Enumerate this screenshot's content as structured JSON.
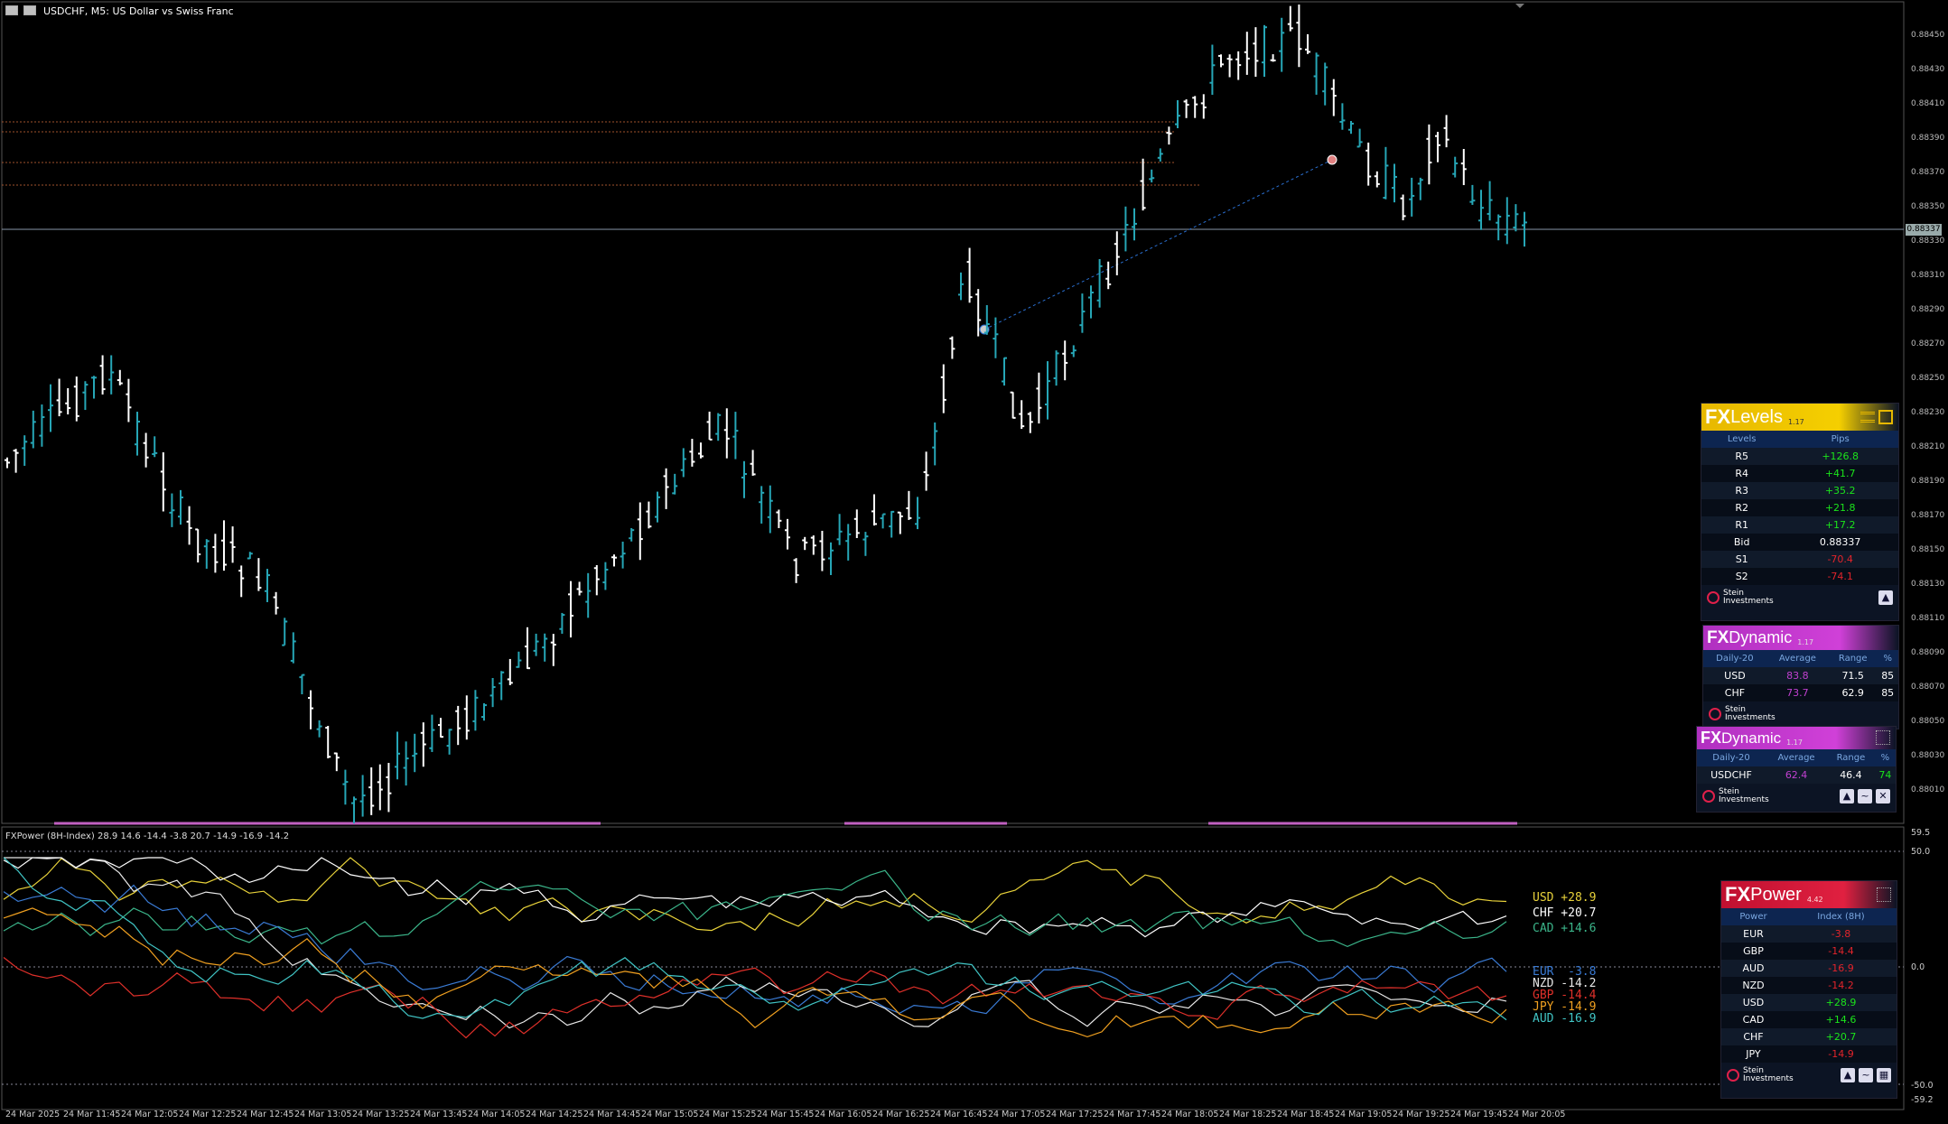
{
  "window": {
    "title": "USDCHF, M5:  US Dollar vs Swiss Franc"
  },
  "colors": {
    "up_candle": "#26a6b6",
    "down_candle": "#ffffff",
    "background": "#000000",
    "usd": "#e8d23a",
    "chf": "#ffffff",
    "cad": "#3bb58a",
    "eur": "#3a7bd5",
    "nzd": "#e8e8e8",
    "gbp": "#e0302a",
    "jpy": "#f0a020",
    "aud": "#40c4c4"
  },
  "price_axis": {
    "labels": [
      "0.88450",
      "0.88430",
      "0.88410",
      "0.88390",
      "0.88370",
      "0.88350",
      "0.88330",
      "0.88310",
      "0.88290",
      "0.88270",
      "0.88250",
      "0.88230",
      "0.88210",
      "0.88190",
      "0.88170",
      "0.88150",
      "0.88130",
      "0.88110",
      "0.88090",
      "0.88070",
      "0.88050",
      "0.88030",
      "0.88010"
    ],
    "current": "0.88337"
  },
  "sub_window": {
    "title": "FXPower (8H-Index) 28.9 14.6 -14.4 -3.8 20.7 -14.9 -16.9 -14.2",
    "ticks": [
      "59.5",
      "50.0",
      "0.0",
      "-50.0",
      "-59.2"
    ]
  },
  "time_axis": [
    "24 Mar 2025",
    "24 Mar 11:45",
    "24 Mar 12:05",
    "24 Mar 12:25",
    "24 Mar 12:45",
    "24 Mar 13:05",
    "24 Mar 13:25",
    "24 Mar 13:45",
    "24 Mar 14:05",
    "24 Mar 14:25",
    "24 Mar 14:45",
    "24 Mar 15:05",
    "24 Mar 15:25",
    "24 Mar 15:45",
    "24 Mar 16:05",
    "24 Mar 16:25",
    "24 Mar 16:45",
    "24 Mar 17:05",
    "24 Mar 17:25",
    "24 Mar 17:45",
    "24 Mar 18:05",
    "24 Mar 18:25",
    "24 Mar 18:45",
    "24 Mar 19:05",
    "24 Mar 19:25",
    "24 Mar 19:45",
    "24 Mar 20:05"
  ],
  "legend": {
    "top": [
      {
        "text": "USD +28.9",
        "color": "#e8d23a"
      },
      {
        "text": "CHF +20.7",
        "color": "#ffffff"
      },
      {
        "text": "CAD +14.6",
        "color": "#3bb58a"
      }
    ],
    "bottom": [
      {
        "text": "EUR  -3.8",
        "color": "#3a7bd5"
      },
      {
        "text": "NZD -14.2",
        "color": "#e8e8e8"
      },
      {
        "text": "GBP -14.4",
        "color": "#e0302a"
      },
      {
        "text": "JPY -14.9",
        "color": "#f0a020"
      },
      {
        "text": "AUD -16.9",
        "color": "#40c4c4"
      }
    ]
  },
  "fx_levels": {
    "brand": "FX",
    "name": "Levels",
    "version": "1.17",
    "headers": [
      "Levels",
      "Pips"
    ],
    "rows": [
      {
        "label": "R5",
        "value": "+126.8",
        "sign": "pos"
      },
      {
        "label": "R4",
        "value": "+41.7",
        "sign": "pos"
      },
      {
        "label": "R3",
        "value": "+35.2",
        "sign": "pos"
      },
      {
        "label": "R2",
        "value": "+21.8",
        "sign": "pos"
      },
      {
        "label": "R1",
        "value": "+17.2",
        "sign": "pos"
      },
      {
        "label": "Bid",
        "value": "0.88337",
        "sign": "neutral"
      },
      {
        "label": "S1",
        "value": "-70.4",
        "sign": "neg"
      },
      {
        "label": "S2",
        "value": "-74.1",
        "sign": "neg"
      }
    ],
    "logo": "Stein Investments"
  },
  "fx_dynamic_1": {
    "brand": "FX",
    "name": "Dynamic",
    "version": "1.17",
    "headers": [
      "Daily-20",
      "Average",
      "Range",
      "%"
    ],
    "rows": [
      [
        "USD",
        "83.8",
        "71.5",
        "85"
      ],
      [
        "CHF",
        "73.7",
        "62.9",
        "85"
      ]
    ],
    "logo": "Stein Investments"
  },
  "fx_dynamic_2": {
    "brand": "FX",
    "name": "Dynamic",
    "version": "1.17",
    "headers": [
      "Daily-20",
      "Average",
      "Range",
      "%"
    ],
    "rows": [
      [
        "USDCHF",
        "62.4",
        "46.4",
        "74"
      ]
    ],
    "logo": "Stein Investments"
  },
  "fx_power": {
    "brand": "FX",
    "name": "Power",
    "version": "4.42",
    "headers": [
      "Power",
      "Index (8H)"
    ],
    "rows": [
      {
        "label": "EUR",
        "value": "-3.8",
        "sign": "neg"
      },
      {
        "label": "GBP",
        "value": "-14.4",
        "sign": "neg"
      },
      {
        "label": "AUD",
        "value": "-16.9",
        "sign": "neg"
      },
      {
        "label": "NZD",
        "value": "-14.2",
        "sign": "neg"
      },
      {
        "label": "USD",
        "value": "+28.9",
        "sign": "pos"
      },
      {
        "label": "CAD",
        "value": "+14.6",
        "sign": "pos"
      },
      {
        "label": "CHF",
        "value": "+20.7",
        "sign": "pos"
      },
      {
        "label": "JPY",
        "value": "-14.9",
        "sign": "neg"
      }
    ],
    "logo": "Stein Investments"
  }
}
